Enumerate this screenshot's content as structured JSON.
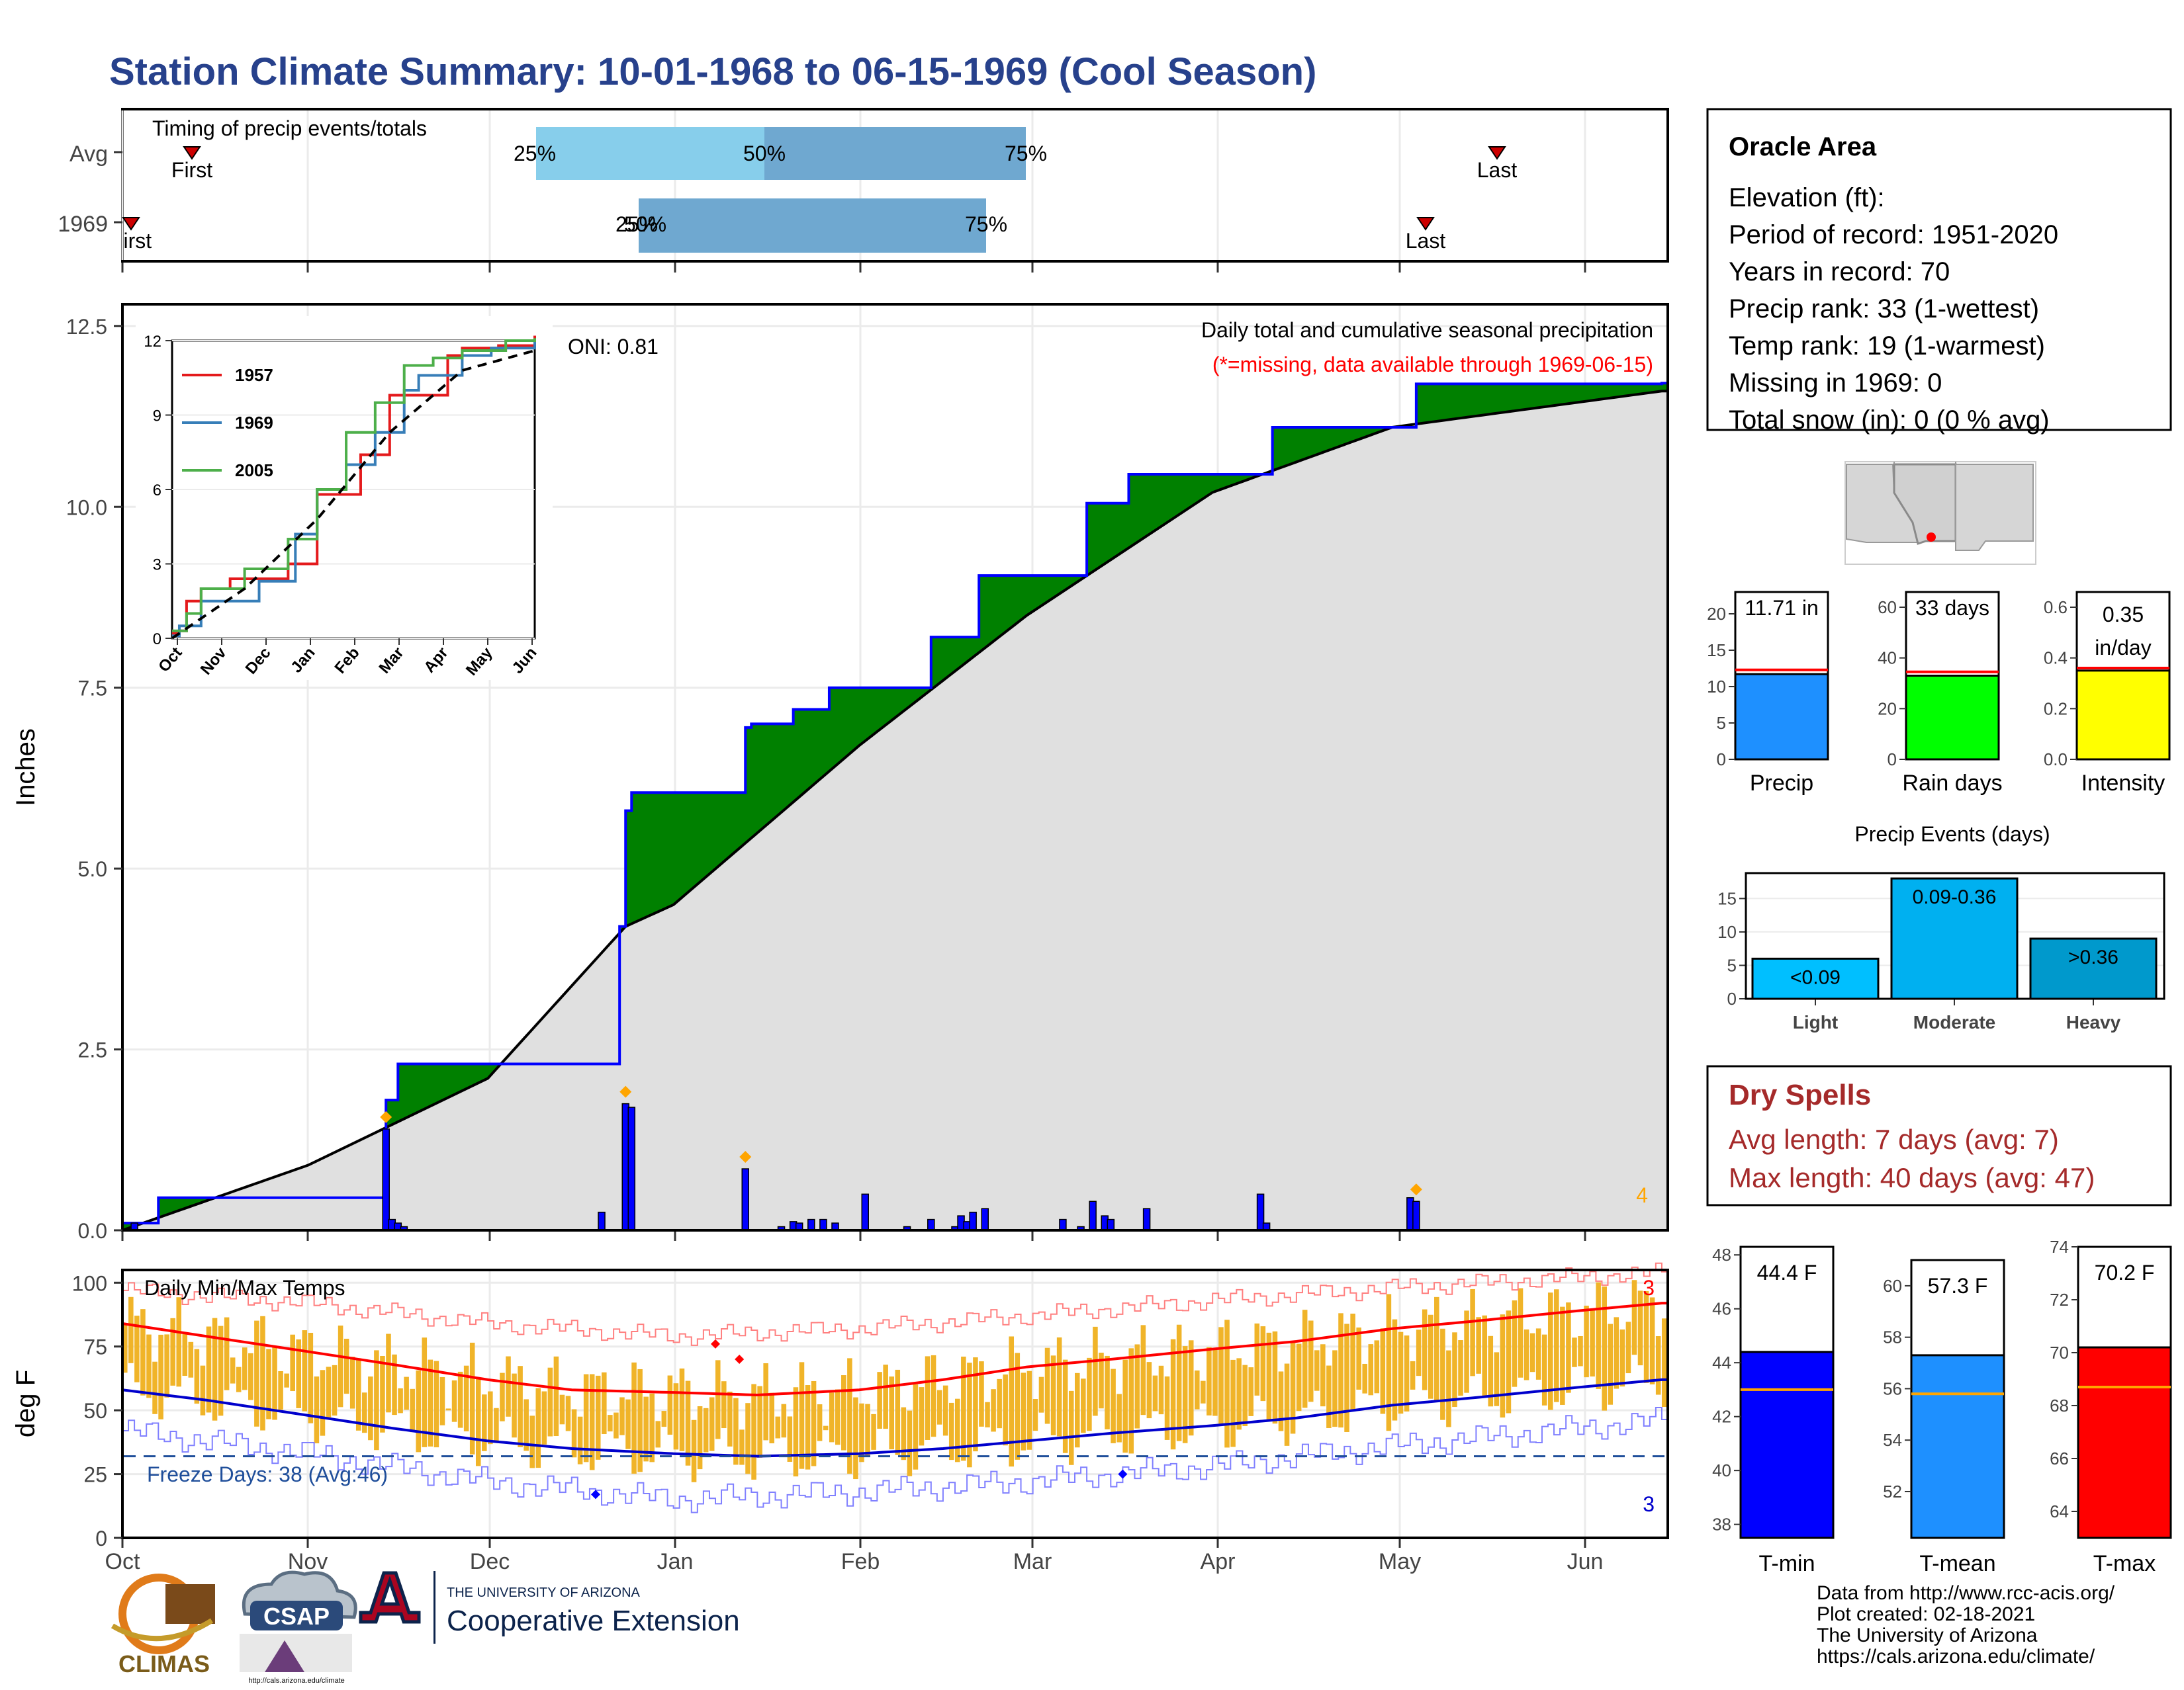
{
  "title": "Station Climate Summary: 10-01-1968 to 06-15-1969 (Cool Season)",
  "colors": {
    "title": "#27418c",
    "q_light": "#87ceeb",
    "q_dark": "#6fa8d0",
    "precip_fill": "#e0e0e0",
    "above": "#008000",
    "below": "#8b5a00",
    "daily_bar": "#0000ff",
    "temp_bar": "#f0b429",
    "max_line": "#ff0000",
    "min_line": "#0000cc",
    "dry_spell": "#a52a2a"
  },
  "timing": {
    "title": "Timing of precip events/totals",
    "rows": [
      {
        "label": "Avg",
        "first_label": "First",
        "last_label": "Last",
        "q25": "25%",
        "q50": "50%",
        "q75": "75%"
      },
      {
        "label": "1969",
        "first_label": "First",
        "last_label": "Last",
        "q25": "25%",
        "q50": "50%",
        "q75": "75%"
      }
    ]
  },
  "precip_panel": {
    "ylabel": "Inches",
    "yticks": [
      "0.0",
      "2.5",
      "5.0",
      "7.5",
      "10.0",
      "12.5"
    ],
    "oni": "ONI: 0.81",
    "caption1": "Daily total and cumulative seasonal precipitation",
    "caption2": "(*=missing, data available through 1969-06-15)",
    "count": "4"
  },
  "inset": {
    "yticks": [
      "0",
      "3",
      "6",
      "9",
      "12"
    ],
    "xticks": [
      "Oct",
      "Nov",
      "Dec",
      "Jan",
      "Feb",
      "Mar",
      "Apr",
      "May",
      "Jun"
    ],
    "legend": [
      "1957",
      "1969",
      "2005"
    ],
    "legend_colors": [
      "#e41a1c",
      "#377eb8",
      "#4daf4a"
    ]
  },
  "temp_panel": {
    "ylabel": "deg F",
    "yticks": [
      "0",
      "25",
      "50",
      "75",
      "100"
    ],
    "title": "Daily Min/Max Temps",
    "freeze": "Freeze Days: 38 (Avg:46)",
    "count_top": "3",
    "count_bottom": "3"
  },
  "x_months": [
    "Oct",
    "Nov",
    "Dec",
    "Jan",
    "Feb",
    "Mar",
    "Apr",
    "May",
    "Jun"
  ],
  "info": {
    "name": "Oracle Area",
    "lines": [
      "Elevation (ft):",
      "Period of record: 1951-2020",
      "Years in record: 70",
      "Precip rank: 33 (1-wettest)",
      "Temp rank: 19 (1-warmest)",
      "Missing in 1969: 0",
      "Total snow (in): 0 (0 % avg)"
    ]
  },
  "summary_bars": [
    {
      "label": "Precip",
      "value_text": "11.71 in",
      "value": 11.71,
      "avg": 12.3,
      "ymax": 23,
      "ticks": [
        "0",
        "5",
        "10",
        "15",
        "20"
      ],
      "tick_values": [
        0,
        5,
        10,
        15,
        20
      ],
      "color": "#1e90ff"
    },
    {
      "label": "Rain days",
      "value_text": "33 days",
      "value": 33,
      "avg": 34.5,
      "ymax": 66,
      "ticks": [
        "0",
        "20",
        "40",
        "60"
      ],
      "tick_values": [
        0,
        20,
        40,
        60
      ],
      "color": "#00ff00"
    },
    {
      "label": "Intensity",
      "value_text": "0.35 in/day",
      "value": 0.35,
      "avg": 0.36,
      "ymax": 0.66,
      "ticks": [
        "0.0",
        "0.2",
        "0.4",
        "0.6"
      ],
      "tick_values": [
        0,
        0.2,
        0.4,
        0.6
      ],
      "color": "#ffff00"
    }
  ],
  "precip_events": {
    "title": "Precip Events (days)",
    "yticks": [
      "0",
      "5",
      "10",
      "15"
    ],
    "bars": [
      {
        "label": "Light",
        "inner": "<0.09",
        "value": 6,
        "color": "#00bfff"
      },
      {
        "label": "Moderate",
        "inner": "0.09-0.36",
        "value": 18,
        "color": "#00b0f0"
      },
      {
        "label": "Heavy",
        "inner": ">0.36",
        "value": 9,
        "color": "#0099cc"
      }
    ]
  },
  "dry_spells": {
    "title": "Dry Spells",
    "avg": "Avg length: 7 days (avg: 7)",
    "max": "Max length: 40 days (avg: 47)"
  },
  "temp_bars": [
    {
      "label": "T-min",
      "value_text": "44.4 F",
      "value": 44.4,
      "avg": 43.0,
      "ymin": 37.5,
      "ymax": 48.3,
      "ticks": [
        "38",
        "40",
        "42",
        "44",
        "46",
        "48"
      ],
      "tick_values": [
        38,
        40,
        42,
        44,
        46,
        48
      ],
      "color": "#0000ff"
    },
    {
      "label": "T-mean",
      "value_text": "57.3 F",
      "value": 57.3,
      "avg": 55.8,
      "ymin": 50.2,
      "ymax": 61.0,
      "ticks": [
        "52",
        "54",
        "56",
        "58",
        "60"
      ],
      "tick_values": [
        52,
        54,
        56,
        58,
        60
      ],
      "color": "#1e90ff"
    },
    {
      "label": "T-max",
      "value_text": "70.2 F",
      "value": 70.2,
      "avg": 68.7,
      "ymin": 63.0,
      "ymax": 74.0,
      "ticks": [
        "64",
        "66",
        "68",
        "70",
        "72",
        "74"
      ],
      "tick_values": [
        64,
        66,
        68,
        70,
        72,
        74
      ],
      "color": "#ff0000"
    }
  ],
  "footer": {
    "lines": [
      "Data from http://www.rcc-acis.org/",
      "Plot created: 02-18-2021",
      "The University of Arizona",
      "https://cals.arizona.edu/climate/"
    ],
    "climas": "CLIMAS",
    "csap": "CSAP",
    "csap_url": "http://cals.arizona.edu/climate",
    "ua_small": "THE UNIVERSITY OF ARIZONA",
    "ua_big": "Cooperative Extension"
  },
  "chart_data": [
    {
      "type": "area",
      "title": "Daily total and cumulative seasonal precipitation",
      "ylabel": "Inches",
      "ylim": [
        0,
        12.8
      ],
      "series": [
        {
          "name": "1969",
          "x": [
            "10-01",
            "10-07",
            "11-12",
            "11-14",
            "11-16",
            "11-25",
            "12-04",
            "12-19",
            "12-20",
            "12-23",
            "12-24",
            "12-25",
            "01-04",
            "01-13",
            "01-14",
            "01-21",
            "01-27",
            "02-13",
            "02-21",
            "03-04",
            "03-11",
            "03-14",
            "03-18",
            "03-21",
            "03-28",
            "04-11",
            "05-05",
            "06-15"
          ],
          "values": [
            0.1,
            0.45,
            0.45,
            1.8,
            2.3,
            2.3,
            2.3,
            2.3,
            2.3,
            4.2,
            5.8,
            6.05,
            6.05,
            6.95,
            7.0,
            7.2,
            7.5,
            8.2,
            9.05,
            9.05,
            10.05,
            10.05,
            10.45,
            10.45,
            10.45,
            11.1,
            11.7,
            11.71
          ]
        },
        {
          "name": "Avg",
          "x": [
            "10-01",
            "11-01",
            "12-01",
            "12-24",
            "01-01",
            "02-01",
            "03-01",
            "04-01",
            "05-01",
            "06-15"
          ],
          "values": [
            0.0,
            0.9,
            2.1,
            4.2,
            4.5,
            6.7,
            8.5,
            10.2,
            11.1,
            11.6
          ]
        }
      ],
      "daily": {
        "x": [
          "10-03",
          "11-14",
          "11-15",
          "11-16",
          "11-17",
          "12-20",
          "12-24",
          "12-25",
          "01-13",
          "01-19",
          "01-21",
          "01-22",
          "01-24",
          "01-26",
          "01-28",
          "02-02",
          "02-09",
          "02-13",
          "02-17",
          "02-18",
          "02-19",
          "02-20",
          "02-22",
          "03-07",
          "03-10",
          "03-12",
          "03-14",
          "03-15",
          "03-21",
          "04-09",
          "04-10",
          "05-04",
          "05-05"
        ],
        "values": [
          0.1,
          1.4,
          0.15,
          0.1,
          0.05,
          0.25,
          1.75,
          1.7,
          0.85,
          0.05,
          0.12,
          0.1,
          0.15,
          0.15,
          0.1,
          0.5,
          0.05,
          0.15,
          0.05,
          0.2,
          0.12,
          0.25,
          0.3,
          0.15,
          0.05,
          0.4,
          0.2,
          0.15,
          0.3,
          0.5,
          0.1,
          0.45,
          0.4
        ]
      }
    },
    {
      "type": "line",
      "title": "",
      "ylim": [
        0,
        12
      ],
      "series": [
        {
          "name": "1957",
          "x": [
            0,
            5,
            10,
            20,
            40,
            80,
            100,
            130,
            150,
            190,
            200,
            225,
            250
          ],
          "values": [
            0.2,
            0.3,
            1.5,
            2.0,
            2.4,
            3.0,
            5.8,
            7.4,
            9.8,
            11.4,
            11.7,
            11.8,
            12.2
          ]
        },
        {
          "name": "1969",
          "x": [
            0,
            5,
            20,
            60,
            85,
            100,
            120,
            140,
            160,
            170,
            200,
            220,
            250
          ],
          "values": [
            0.1,
            0.5,
            1.5,
            2.3,
            4.2,
            6.0,
            7.0,
            8.3,
            10.0,
            10.6,
            11.4,
            11.7,
            12.0
          ]
        },
        {
          "name": "2005",
          "x": [
            0,
            10,
            20,
            50,
            80,
            100,
            120,
            140,
            160,
            180,
            200,
            230,
            250
          ],
          "values": [
            0.3,
            1.0,
            2.0,
            2.8,
            4.0,
            6.0,
            8.3,
            9.5,
            11.0,
            11.3,
            11.6,
            12.0,
            12.1
          ]
        },
        {
          "name": "Avg",
          "x": [
            0,
            50,
            100,
            150,
            200,
            250
          ],
          "values": [
            0.0,
            2.0,
            4.8,
            8.3,
            10.8,
            11.6
          ]
        }
      ]
    },
    {
      "type": "line",
      "title": "Daily Min/Max Temps",
      "ylabel": "deg F",
      "ylim": [
        0,
        105
      ],
      "series": [
        {
          "name": "Avg max",
          "x": [
            "10-01",
            "10-15",
            "11-01",
            "11-15",
            "12-01",
            "12-15",
            "01-01",
            "01-15",
            "02-01",
            "02-15",
            "03-01",
            "03-15",
            "04-01",
            "04-15",
            "05-01",
            "05-15",
            "06-01",
            "06-15"
          ],
          "values": [
            84,
            79,
            73,
            68,
            62,
            58,
            57,
            56,
            58,
            62,
            67,
            70,
            74,
            77,
            82,
            85,
            89,
            92
          ]
        },
        {
          "name": "Avg min",
          "x": [
            "10-01",
            "10-15",
            "11-01",
            "11-15",
            "12-01",
            "12-15",
            "01-01",
            "01-15",
            "02-01",
            "02-15",
            "03-01",
            "03-15",
            "04-01",
            "04-15",
            "05-01",
            "05-15",
            "06-01",
            "06-15"
          ],
          "values": [
            58,
            54,
            48,
            43,
            38,
            35,
            33,
            32,
            33,
            35,
            38,
            41,
            44,
            47,
            52,
            55,
            59,
            62
          ]
        },
        {
          "name": "Record high",
          "x": [
            "10-01",
            "11-01",
            "12-01",
            "01-01",
            "02-01",
            "03-01",
            "04-01",
            "05-01",
            "06-15"
          ],
          "values": [
            97,
            92,
            84,
            79,
            82,
            87,
            93,
            98,
            104
          ]
        },
        {
          "name": "Record low",
          "x": [
            "10-01",
            "11-01",
            "12-01",
            "01-01",
            "02-01",
            "03-01",
            "04-01",
            "05-01",
            "06-15"
          ],
          "values": [
            42,
            33,
            22,
            15,
            18,
            22,
            28,
            36,
            46
          ]
        }
      ],
      "freeze_line": 32
    },
    {
      "type": "bar",
      "title": "",
      "categories": [
        "Precip",
        "Rain days",
        "Intensity"
      ],
      "values": [
        11.71,
        33,
        0.35
      ]
    },
    {
      "type": "bar",
      "title": "Precip Events (days)",
      "categories": [
        "Light",
        "Moderate",
        "Heavy"
      ],
      "values": [
        6,
        18,
        9
      ]
    },
    {
      "type": "bar",
      "title": "",
      "categories": [
        "T-min",
        "T-mean",
        "T-max"
      ],
      "values": [
        44.4,
        57.3,
        70.2
      ]
    }
  ]
}
